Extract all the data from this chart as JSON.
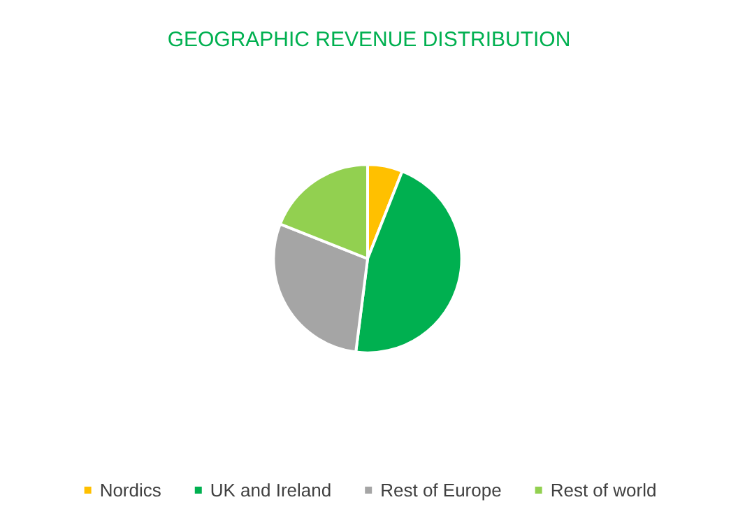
{
  "chart_data": {
    "type": "pie",
    "title": "GEOGRAPHIC REVENUE DISTRIBUTION",
    "categories": [
      "Nordics",
      "UK and Ireland",
      "Rest of Europe",
      "Rest of world"
    ],
    "values": [
      6,
      46,
      29,
      19
    ],
    "colors": [
      "#ffc000",
      "#00b050",
      "#a5a5a5",
      "#92d050"
    ],
    "legend": "bottom"
  }
}
